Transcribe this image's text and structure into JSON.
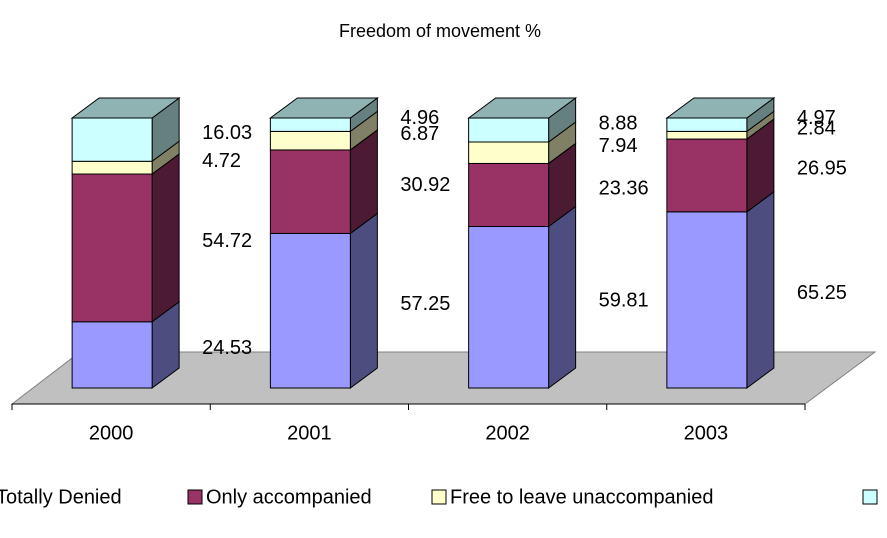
{
  "chart_data": {
    "type": "bar",
    "stacked": true,
    "three_d": true,
    "title": "Freedom of movement %",
    "categories": [
      "2000",
      "2001",
      "2002",
      "2003"
    ],
    "series": [
      {
        "name": "Totally Denied",
        "color": "#9999ff",
        "values": [
          24.53,
          57.25,
          59.81,
          65.25
        ]
      },
      {
        "name": "Only accompanied",
        "color": "#993366",
        "values": [
          54.72,
          30.92,
          23.36,
          26.95
        ]
      },
      {
        "name": "Free to leave unaccompanied",
        "color": "#ffffcc",
        "values": [
          4.72,
          6.87,
          7.94,
          2.84
        ]
      },
      {
        "name": null,
        "color": "#ccffff",
        "values": [
          16.03,
          4.96,
          8.88,
          4.97
        ]
      }
    ],
    "ylim": [
      0,
      100
    ],
    "legend": "bottom"
  }
}
